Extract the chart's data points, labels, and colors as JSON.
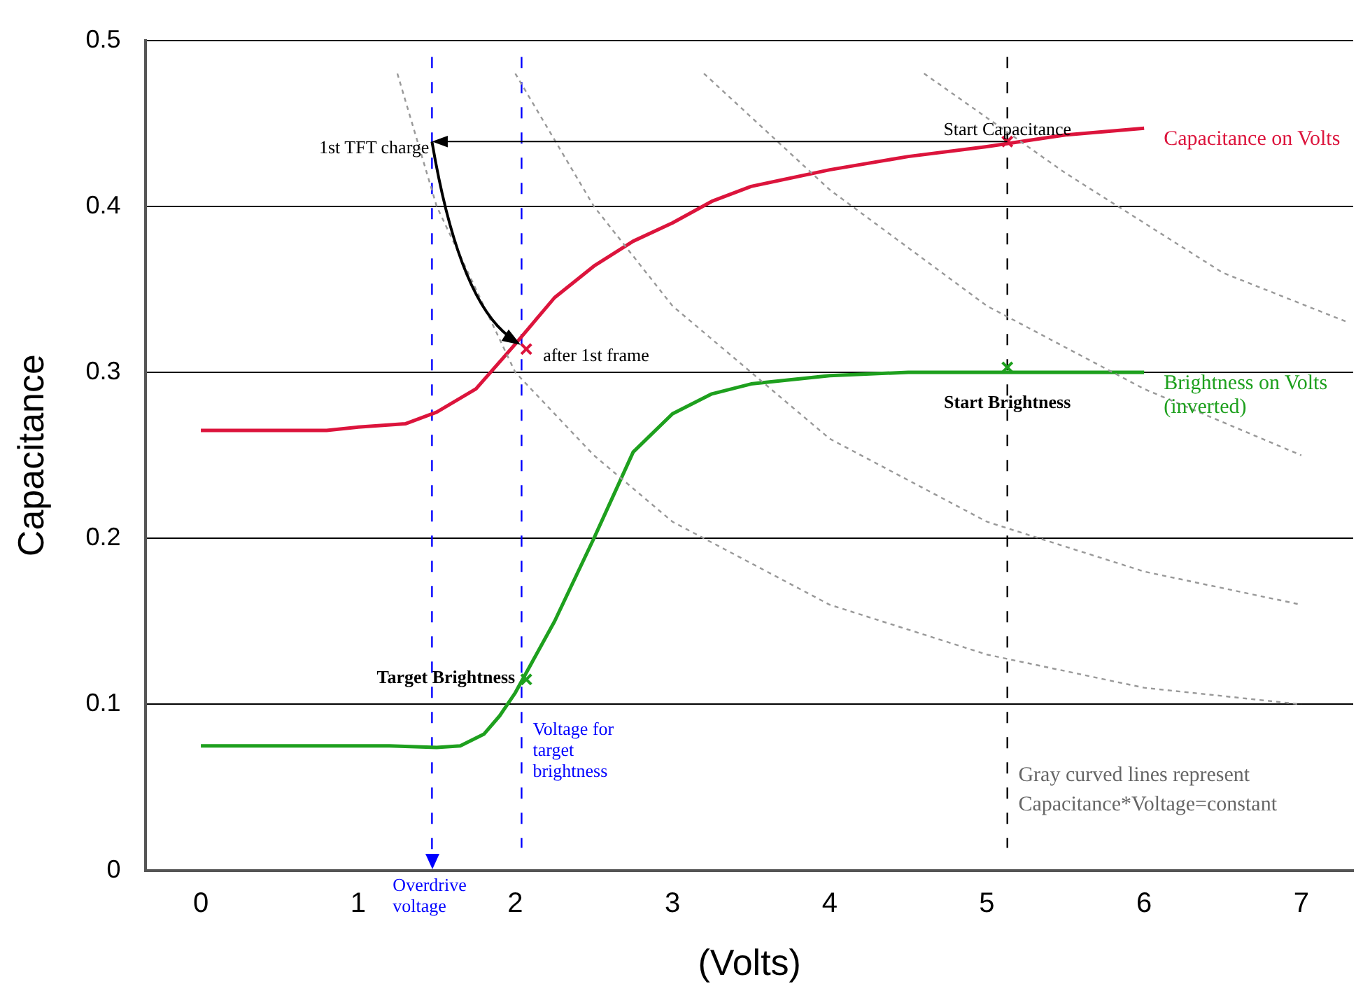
{
  "chart_data": {
    "type": "line",
    "xlabel": "(Volts)",
    "ylabel": "Capacitance",
    "xlim": [
      -0.35,
      7.33
    ],
    "xticks": [
      0,
      1,
      2,
      3,
      4,
      5,
      6,
      7
    ],
    "ylim": [
      0,
      0.5
    ],
    "yticks": [
      0,
      0.1,
      0.2,
      0.3,
      0.4,
      0.5
    ],
    "grid": "y",
    "legend": false,
    "marker": "none",
    "series": [
      {
        "color": "#999999",
        "line_style": "dashed",
        "x": [
          1.25,
          1.5,
          2,
          2.5,
          3,
          4,
          5,
          6,
          7
        ],
        "values": [
          0.48,
          0.4,
          0.3,
          0.25,
          0.21,
          0.16,
          0.13,
          0.11,
          0.1
        ]
      },
      {
        "color": "#999999",
        "line_style": "dashed",
        "x": [
          2,
          2.5,
          3,
          3.5,
          4,
          5,
          6,
          7
        ],
        "values": [
          0.48,
          0.4,
          0.34,
          0.3,
          0.26,
          0.21,
          0.18,
          0.16
        ]
      },
      {
        "color": "#999999",
        "line_style": "dashed",
        "x": [
          3.2,
          4,
          5,
          6,
          7
        ],
        "values": [
          0.48,
          0.41,
          0.34,
          0.29,
          0.25
        ]
      },
      {
        "color": "#999999",
        "line_style": "dashed",
        "x": [
          4.6,
          5.5,
          6.5,
          7.3
        ],
        "values": [
          0.48,
          0.42,
          0.36,
          0.33
        ]
      },
      {
        "name": "Capacitance on Volts",
        "color": "#dc143c",
        "line_style": "solid",
        "x": [
          0,
          0.8,
          1,
          1.3,
          1.5,
          1.75,
          2,
          2.25,
          2.5,
          2.75,
          3,
          3.25,
          3.5,
          4,
          4.5,
          5,
          5.5,
          6
        ],
        "values": [
          0.265,
          0.265,
          0.267,
          0.269,
          0.276,
          0.29,
          0.317,
          0.345,
          0.364,
          0.379,
          0.39,
          0.403,
          0.412,
          0.422,
          0.43,
          0.436,
          0.443,
          0.447
        ]
      },
      {
        "name": "Brightness on Volts (inverted)",
        "color": "#1ea01e",
        "line_style": "solid",
        "x": [
          0,
          1.2,
          1.5,
          1.65,
          1.8,
          1.9,
          2,
          2.25,
          2.5,
          2.75,
          3,
          3.25,
          3.5,
          4,
          4.5,
          5,
          6
        ],
        "values": [
          0.075,
          0.075,
          0.074,
          0.075,
          0.082,
          0.093,
          0.107,
          0.15,
          0.2,
          0.252,
          0.275,
          0.287,
          0.293,
          0.298,
          0.3,
          0.3,
          0.3
        ]
      },
      {
        "type": "scatter",
        "color": "#dc143c",
        "marker": "cross",
        "x": [
          2.07,
          5.13
        ],
        "values": [
          0.314,
          0.439
        ]
      },
      {
        "type": "scatter",
        "color": "#1ea01e",
        "marker": "cross",
        "x": [
          2.07,
          5.13
        ],
        "values": [
          0.115,
          0.303
        ]
      }
    ],
    "ref_lines": [
      {
        "axis": "x",
        "value": 1.47,
        "label": "Overdrive voltage",
        "color": "#0000ff",
        "line_style": "dashed"
      },
      {
        "axis": "x",
        "value": 2.04,
        "label": "Voltage for target brightness",
        "color": "#0000ff",
        "line_style": "dashed"
      },
      {
        "axis": "x",
        "value": 5.13,
        "color": "#000000",
        "line_style": "dashed"
      }
    ],
    "annotations": [
      {
        "text": "1st TFT charge",
        "x": 1.47,
        "y": 0.439
      },
      {
        "text": "after 1st frame",
        "x": 2.07,
        "y": 0.314
      },
      {
        "text": "Start Capacitance",
        "x": 5.13,
        "y": 0.439
      },
      {
        "text": "Start Brightness",
        "x": 5.13,
        "y": 0.3
      },
      {
        "text": "Target Brightness",
        "x": 2.07,
        "y": 0.115
      },
      "Gray curved lines represent Capacitance*Voltage=constant"
    ]
  }
}
